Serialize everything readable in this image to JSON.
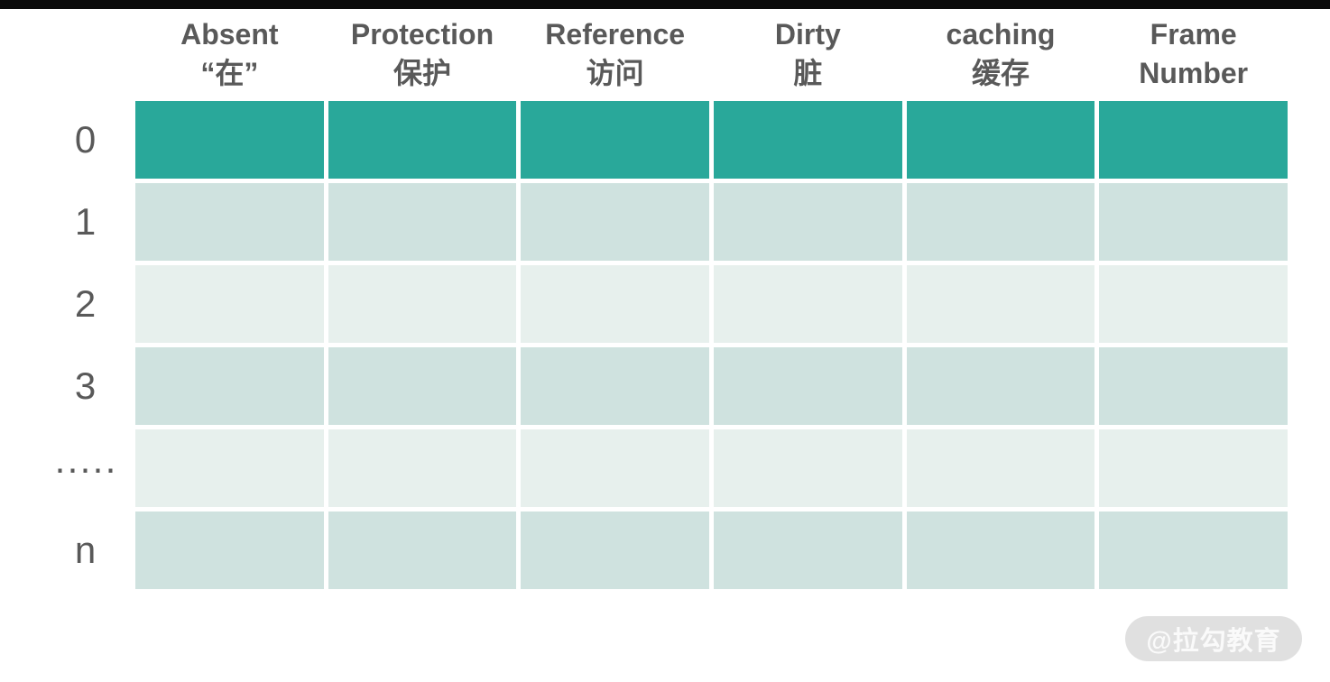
{
  "colors": {
    "top_bar": "#0b0b0b",
    "row_highlight": "#29a89a",
    "row_light": "#cfe2df",
    "row_lighter": "#e7f0ed",
    "header_text": "#595959",
    "watermark_bg": "#e0e0e0",
    "watermark_text": "#fafafa"
  },
  "header": {
    "columns": [
      {
        "line1": "Absent",
        "line2": "“在”"
      },
      {
        "line1": "Protection",
        "line2": "保护"
      },
      {
        "line1": "Reference",
        "line2": "访问"
      },
      {
        "line1": "Dirty",
        "line2": "脏"
      },
      {
        "line1": "caching",
        "line2": "缓存"
      },
      {
        "line1": "Frame",
        "line2": "Number"
      }
    ]
  },
  "rows": [
    {
      "label": "0",
      "shade": "highlight"
    },
    {
      "label": "1",
      "shade": "light"
    },
    {
      "label": "2",
      "shade": "lighter"
    },
    {
      "label": "3",
      "shade": "light"
    },
    {
      "label": "·····",
      "shade": "lighter"
    },
    {
      "label": "n",
      "shade": "light"
    }
  ],
  "watermark": {
    "text": "@拉勾教育"
  }
}
